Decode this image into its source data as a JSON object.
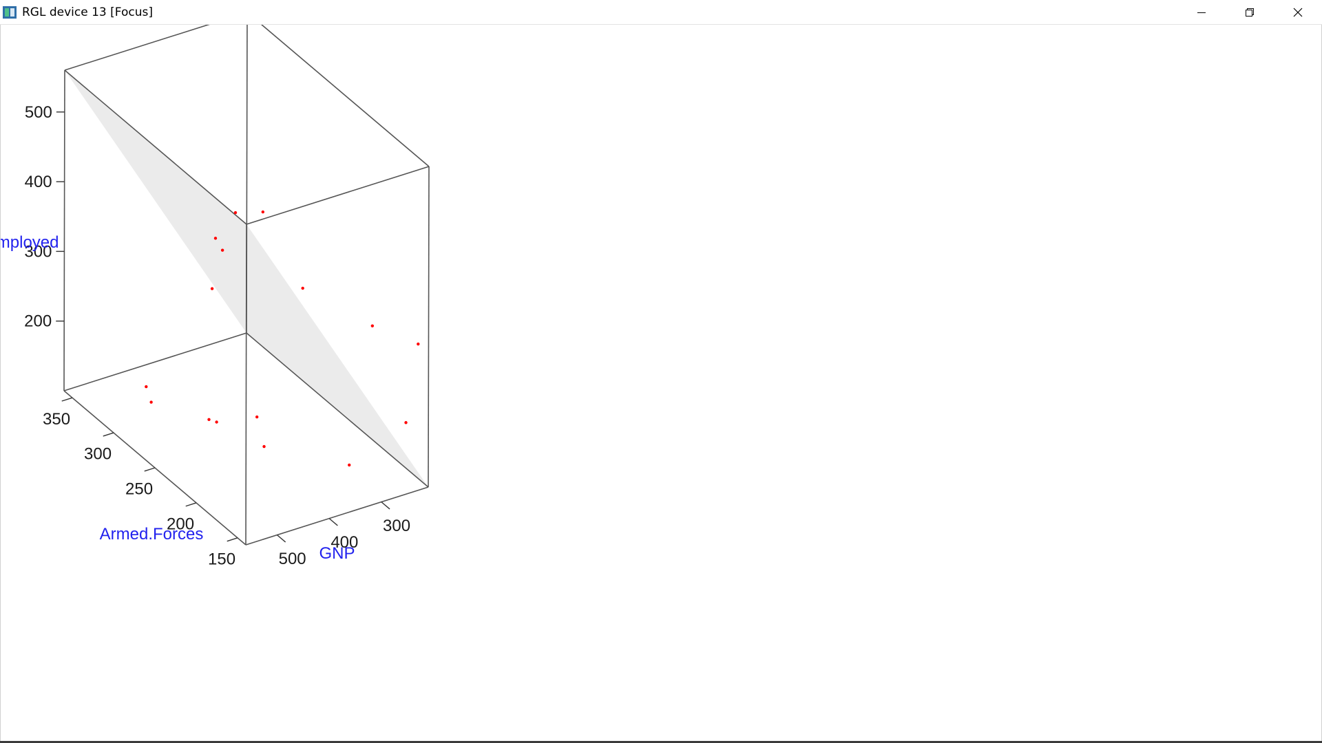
{
  "window": {
    "title": "RGL device 13 [Focus]",
    "controls": [
      "minimize-icon",
      "restore-icon",
      "close-icon"
    ]
  },
  "chart_data": {
    "type": "scatter",
    "subtype": "3d-scatter-with-regression-plane",
    "title": "",
    "axes": {
      "x": {
        "label": "GNP",
        "ticks": [
          300,
          400,
          500
        ],
        "range": [
          210,
          560
        ]
      },
      "y": {
        "label": "Armed.Forces",
        "ticks": [
          150,
          200,
          250,
          300,
          350
        ],
        "range": [
          140,
          360
        ]
      },
      "z": {
        "label": "Unemployed",
        "ticks": [
          200,
          300,
          400,
          500
        ],
        "range": [
          100,
          560
        ]
      }
    },
    "colors": {
      "points": "#ff0000",
      "plane": "#ebebeb",
      "box": "#555555",
      "axis_title": "#2222ee"
    },
    "points": [
      {
        "x": 230,
        "y": 140,
        "z": 310
      },
      {
        "x": 250,
        "y": 142,
        "z": 200
      },
      {
        "x": 330,
        "y": 160,
        "z": 140
      },
      {
        "x": 310,
        "y": 145,
        "z": 350
      },
      {
        "x": 420,
        "y": 160,
        "z": 415
      },
      {
        "x": 465,
        "y": 180,
        "z": 515
      },
      {
        "x": 470,
        "y": 210,
        "z": 485
      },
      {
        "x": 540,
        "y": 190,
        "z": 485
      },
      {
        "x": 420,
        "y": 215,
        "z": 175
      },
      {
        "x": 430,
        "y": 200,
        "z": 150
      },
      {
        "x": 410,
        "y": 270,
        "z": 110
      },
      {
        "x": 450,
        "y": 330,
        "z": 110
      },
      {
        "x": 480,
        "y": 305,
        "z": 120
      },
      {
        "x": 300,
        "y": 345,
        "z": 200
      },
      {
        "x": 520,
        "y": 210,
        "z": 200
      },
      {
        "x": 320,
        "y": 320,
        "z": 285
      }
    ],
    "plane": [
      {
        "x": 210,
        "y": 140,
        "z": 100
      },
      {
        "x": 560,
        "y": 140,
        "z": 560
      },
      {
        "x": 560,
        "y": 360,
        "z": 560
      },
      {
        "x": 210,
        "y": 360,
        "z": 100
      }
    ]
  }
}
